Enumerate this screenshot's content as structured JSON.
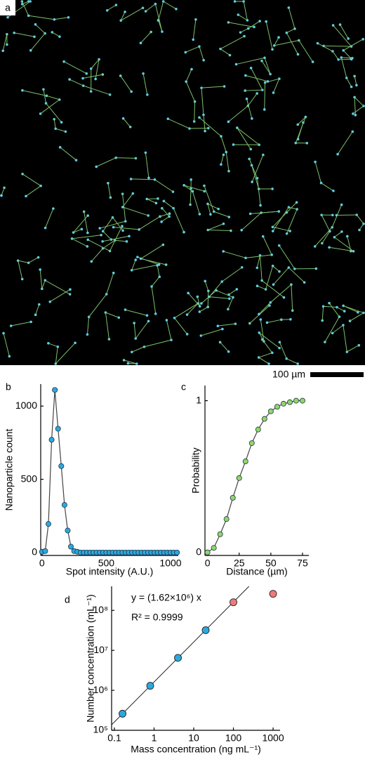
{
  "panel_labels": [
    "a",
    "b",
    "c",
    "d"
  ],
  "scale_bar": "100 µm",
  "chart_data": [
    {
      "type": "line",
      "xlabel": "Spot intensity (A.U.)",
      "ylabel": "Nanoparticle count",
      "x": [
        0,
        25,
        50,
        75,
        100,
        125,
        150,
        175,
        200,
        225,
        250,
        275,
        300,
        325,
        350,
        375,
        400,
        425,
        450,
        475,
        500,
        525,
        550,
        575,
        600,
        625,
        650,
        675,
        700,
        725,
        750,
        775,
        800,
        825,
        850,
        875,
        900,
        925,
        950,
        975,
        1000,
        1025,
        1050
      ],
      "values": [
        5,
        10,
        195,
        770,
        1110,
        845,
        590,
        325,
        150,
        40,
        10,
        5,
        0,
        0,
        0,
        0,
        0,
        0,
        0,
        0,
        0,
        0,
        0,
        0,
        0,
        0,
        0,
        0,
        0,
        0,
        0,
        0,
        0,
        0,
        0,
        0,
        0,
        0,
        0,
        0,
        0,
        0,
        0
      ],
      "color": "#2aa9e0",
      "xlim": [
        -10,
        1060
      ],
      "ylim": [
        -20,
        1150
      ],
      "xticks": [
        0,
        500,
        1000
      ],
      "yticks": [
        0,
        500,
        1000
      ]
    },
    {
      "type": "line",
      "xlabel": "Distance (µm)",
      "ylabel": "Probability",
      "x": [
        0,
        5,
        10,
        15,
        20,
        25,
        30,
        35,
        40,
        45,
        50,
        55,
        60,
        65,
        70,
        75
      ],
      "values": [
        0,
        0.03,
        0.12,
        0.22,
        0.36,
        0.49,
        0.6,
        0.72,
        0.81,
        0.88,
        0.93,
        0.96,
        0.98,
        0.99,
        1,
        1
      ],
      "color": "#8fd66b",
      "xlim": [
        -2,
        80
      ],
      "ylim": [
        -0.02,
        1.1
      ],
      "xticks": [
        0,
        25,
        50,
        75
      ],
      "yticks": [
        0,
        1
      ]
    },
    {
      "type": "scatter",
      "xlabel": "Mass concentration (ng mL⁻¹)",
      "ylabel": "Number concentration (mL⁻¹)",
      "annotations": [
        "y = (1.62×10⁶) x",
        "R² = 0.9999"
      ],
      "fit_slope": 1620000,
      "log_x": true,
      "log_y": true,
      "series": [
        {
          "color": "#2aa9e0",
          "x": [
            0.16,
            0.8,
            4,
            20
          ],
          "values": [
            260000,
            1300000,
            6500000,
            32000000
          ]
        },
        {
          "color": "#f07a7a",
          "x": [
            100,
            1000
          ],
          "values": [
            160000000,
            260000000
          ]
        }
      ],
      "xlim": [
        0.085,
        1500
      ],
      "ylim": [
        100000,
        400000000
      ],
      "xticks": [
        0.1,
        1,
        10,
        100,
        1000
      ],
      "yticks": [
        {
          "value": 100000,
          "label": "10⁵"
        },
        {
          "value": 1000000,
          "label": "10⁶"
        },
        {
          "value": 10000000,
          "label": "10⁷"
        },
        {
          "value": 100000000,
          "label": "10⁸"
        }
      ]
    }
  ]
}
